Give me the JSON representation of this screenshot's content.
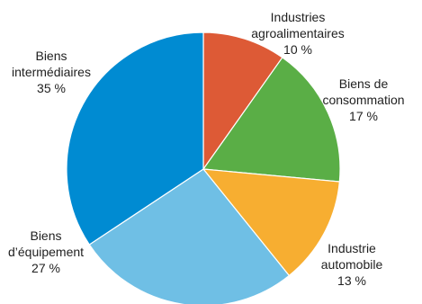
{
  "chart_data": {
    "type": "pie",
    "slices": [
      {
        "label_lines": [
          "Industries",
          "agroalimentaires"
        ],
        "value": 10,
        "value_label": "10 %",
        "color": "#dd5a36"
      },
      {
        "label_lines": [
          "Biens de",
          "consommation"
        ],
        "value": 17,
        "value_label": "17 %",
        "color": "#5aae46"
      },
      {
        "label_lines": [
          "Industrie",
          "automobile"
        ],
        "value": 13,
        "value_label": "13 %",
        "color": "#f7ae31"
      },
      {
        "label_lines": [
          "Biens",
          "d’équipement"
        ],
        "value": 27,
        "value_label": "27 %",
        "color": "#6fbfe5"
      },
      {
        "label_lines": [
          "Biens",
          "intermédiaires"
        ],
        "value": 35,
        "value_label": "35 %",
        "color": "#008bd2"
      }
    ],
    "start_angle_deg": 0,
    "direction": "clockwise"
  }
}
